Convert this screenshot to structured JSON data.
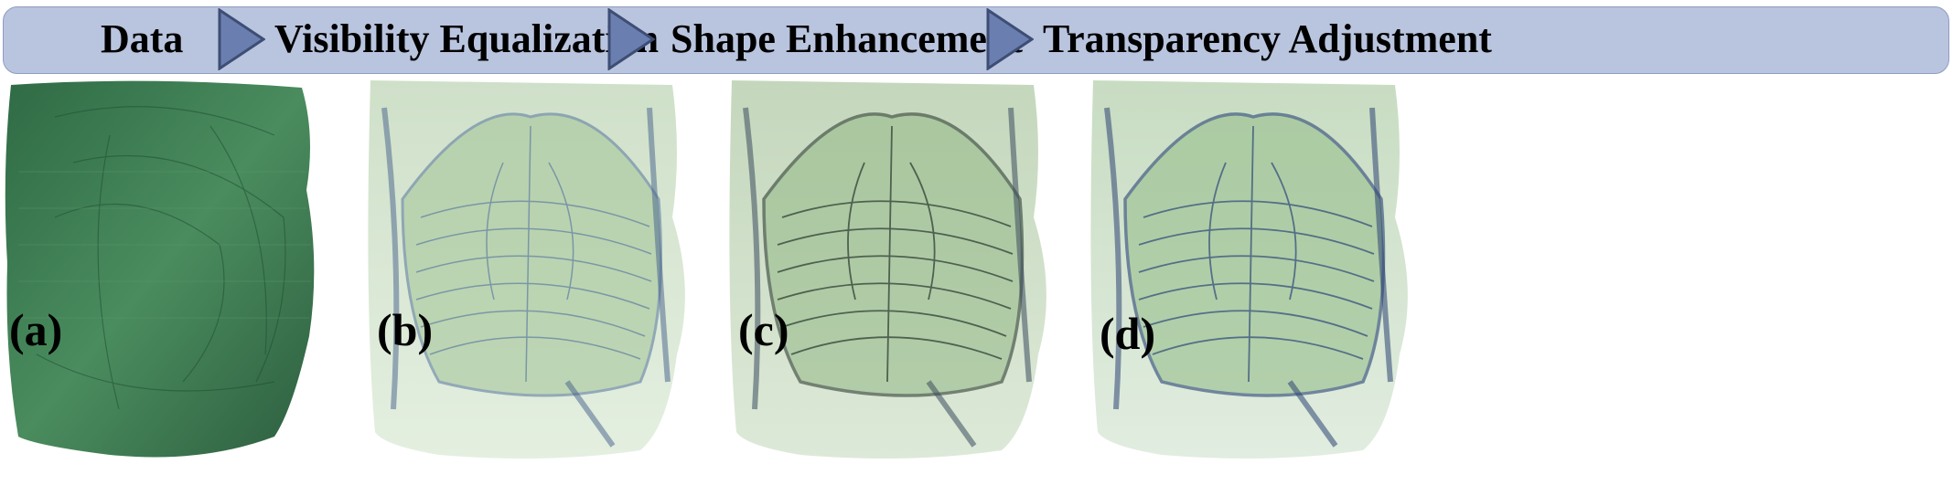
{
  "pipeline": {
    "steps": [
      "Data",
      "Visibility Equalization",
      "Shape Enhancement",
      "Transparency Adjustment"
    ]
  },
  "panels": [
    {
      "label": "(a)"
    },
    {
      "label": "(b)"
    },
    {
      "label": "(c)"
    },
    {
      "label": "(d)"
    }
  ],
  "colors": {
    "bar_fill": "#b9c4de",
    "arrow_fill": "#6a7fb0",
    "raw_volume_green": "#3c7e52",
    "rendered_green": "#a9c9a0",
    "rendered_blue": "#5f7ea0"
  }
}
